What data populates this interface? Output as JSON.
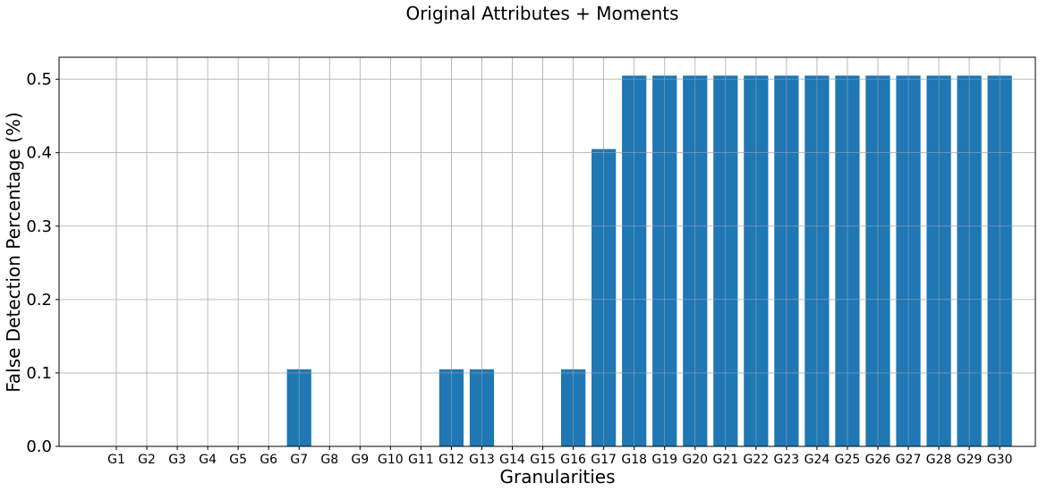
{
  "chart_data": {
    "type": "bar",
    "title": "Original Attributes + Moments",
    "xlabel": "Granularities",
    "ylabel": "False Detection Percentage (%)",
    "categories": [
      "G1",
      "G2",
      "G3",
      "G4",
      "G5",
      "G6",
      "G7",
      "G8",
      "G9",
      "G10",
      "G11",
      "G12",
      "G13",
      "G14",
      "G15",
      "G16",
      "G17",
      "G18",
      "G19",
      "G20",
      "G21",
      "G22",
      "G23",
      "G24",
      "G25",
      "G26",
      "G27",
      "G28",
      "G29",
      "G30"
    ],
    "values": [
      0,
      0,
      0,
      0,
      0,
      0,
      0.1,
      0,
      0,
      0,
      0,
      0.1,
      0.1,
      0,
      0,
      0.1,
      0.4,
      0.5,
      0.5,
      0.5,
      0.5,
      0.5,
      0.5,
      0.5,
      0.5,
      0.5,
      0.5,
      0.5,
      0.5,
      0.5
    ],
    "yticks": [
      "0.0",
      "0.1",
      "0.2",
      "0.3",
      "0.4",
      "0.5"
    ],
    "ylim": [
      0,
      0.53
    ],
    "grid": true,
    "bar_color": "#1f77b4",
    "grid_color": "#b0b0b0"
  }
}
